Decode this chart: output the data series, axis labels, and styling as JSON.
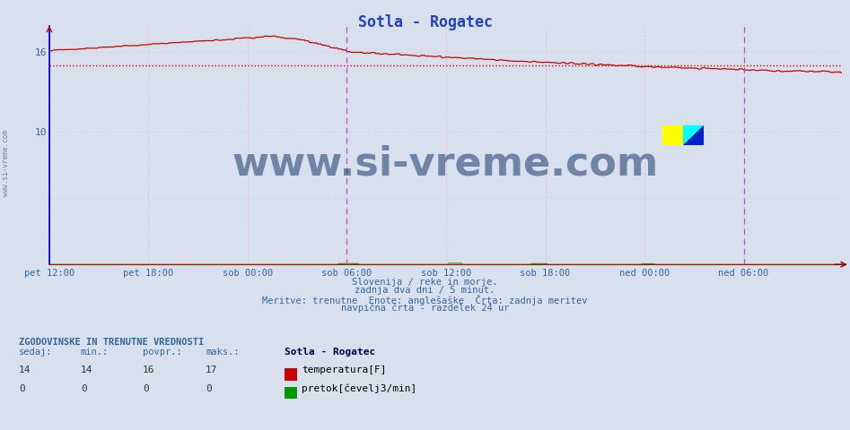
{
  "title": "Sotla - Rogatec",
  "title_color": "#2244bb",
  "bg_color": "#d8e0ee",
  "plot_bg_color": "#d8e0ee",
  "grid_color_v": "#ffaaaa",
  "grid_color_h": "#ccccdd",
  "xlabel_color": "#336699",
  "ylabel_color": "#336699",
  "x_tick_labels": [
    "pet 12:00",
    "pet 18:00",
    "sob 00:00",
    "sob 06:00",
    "sob 12:00",
    "sob 18:00",
    "ned 00:00",
    "ned 06:00"
  ],
  "x_tick_positions": [
    0,
    72,
    144,
    216,
    288,
    360,
    432,
    504
  ],
  "total_points": 576,
  "ylim": [
    0,
    18.0
  ],
  "y_ticks": [
    10,
    16
  ],
  "temp_color": "#cc0000",
  "flow_color": "#009900",
  "avg_line_color": "#cc0000",
  "avg_value": 15.0,
  "vline_color": "#cc44cc",
  "vline_positions": [
    216,
    504
  ],
  "start_vline_color": "#0000dd",
  "watermark_text": "www.si-vreme.com",
  "watermark_color": "#1a3a6e",
  "subtitle_lines": [
    "Slovenija / reke in morje.",
    "zadnja dva dni / 5 minut.",
    "Meritve: trenutne  Enote: anglešaške  Črta: zadnja meritev",
    "navpična črta - razdelek 24 ur"
  ],
  "legend_title": "Sotla - Rogatec",
  "legend_items": [
    {
      "label": "temperatura[F]",
      "color": "#cc0000"
    },
    {
      "label": "pretok[čevelj3/min]",
      "color": "#009900"
    }
  ],
  "stats_header": "ZGODOVINSKE IN TRENUTNE VREDNOSTI",
  "stats_cols": [
    "sedaj:",
    "min.:",
    "povpr.:",
    "maks.:"
  ],
  "stats_temp": [
    14,
    14,
    16,
    17
  ],
  "stats_flow": [
    0,
    0,
    0,
    0
  ],
  "figsize": [
    9.47,
    4.8
  ],
  "dpi": 100
}
